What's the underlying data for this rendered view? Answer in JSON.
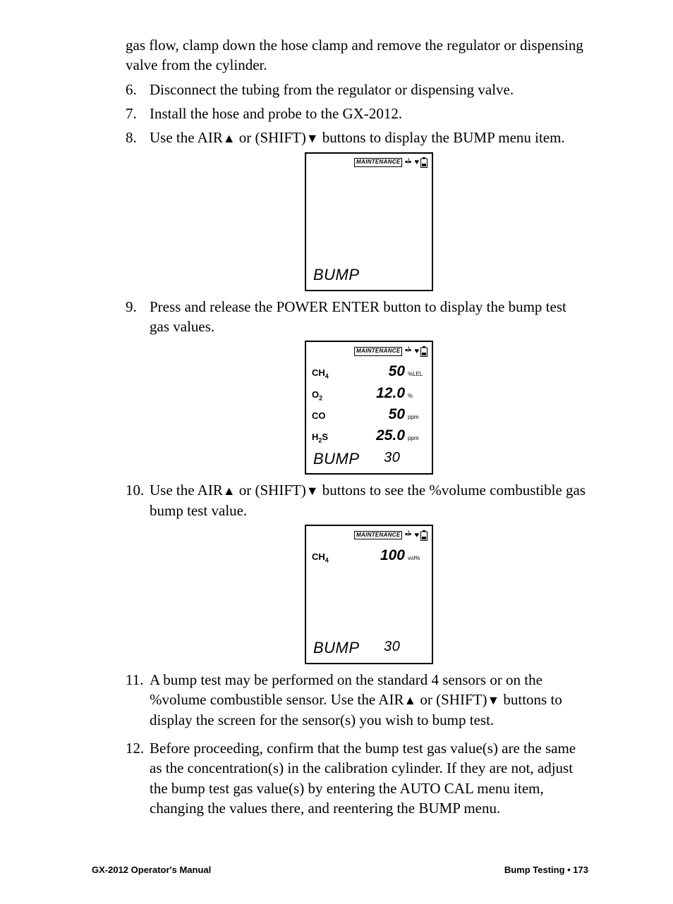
{
  "continuation": "gas flow, clamp down the hose clamp and remove the regulator or dispensing valve from the cylinder.",
  "steps": {
    "n6": "6.",
    "t6": "Disconnect the tubing from the regulator or dispensing valve.",
    "n7": "7.",
    "t7": "Install the hose and probe to the GX-2012.",
    "n8": "8.",
    "t8a": "Use the AIR",
    "t8b": " or (SHIFT)",
    "t8c": " buttons to display the BUMP menu item.",
    "n9": "9.",
    "t9": "Press and release the POWER ENTER button to display the bump test gas values.",
    "n10": "10.",
    "t10a": "Use the AIR",
    "t10b": " or (SHIFT)",
    "t10c": " buttons to see the %volume combustible gas bump test value.",
    "n11": "11.",
    "t11a": "A bump test may be performed on the standard 4 sensors or on the %volume combustible sensor. Use the AIR",
    "t11b": " or (SHIFT)",
    "t11c": " buttons to display the screen for the sensor(s) you wish to bump test.",
    "n12": "12.",
    "t12": "Before proceeding, confirm that the bump test gas value(s) are the same as the concentration(s) in the calibration cylinder. If they are not, adjust the bump test gas value(s) by entering the AUTO CAL menu item, changing the values there, and reentering the BUMP menu."
  },
  "triangles": {
    "up": "▲",
    "down": "▼"
  },
  "lcd": {
    "maintenance": "MAINTENANCE",
    "bump": "BUMP",
    "count": "30",
    "screen1": {
      "rows": []
    },
    "screen2": {
      "rows": [
        {
          "gas_html": "CH<sub>4</sub>",
          "val": "50",
          "unit": "%LEL"
        },
        {
          "gas_html": "O<sub>2</sub>",
          "val": "12.0",
          "unit": "%"
        },
        {
          "gas_html": "CO",
          "val": "50",
          "unit": "ppm"
        },
        {
          "gas_html": "H<sub>2</sub>S",
          "val": "25.0",
          "unit": "ppm"
        }
      ]
    },
    "screen3": {
      "rows": [
        {
          "gas_html": "CH<sub>4</sub>",
          "val": "100",
          "unit": "vol%"
        }
      ]
    }
  },
  "footer": {
    "left": "GX-2012 Operator's Manual",
    "right": "Bump Testing • 173"
  }
}
